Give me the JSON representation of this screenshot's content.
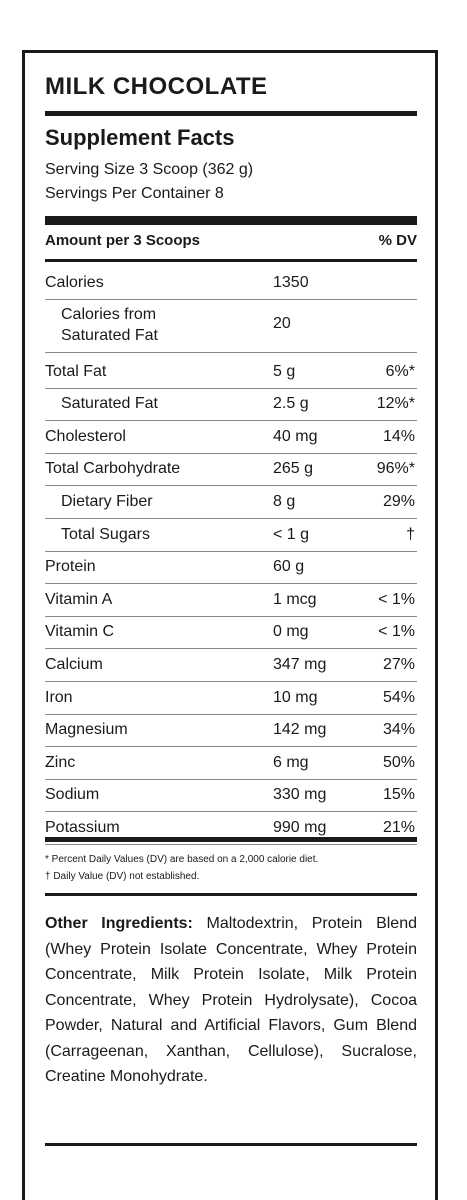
{
  "product_name": "MILK CHOCOLATE",
  "title": "Supplement Facts",
  "serving_size": "Serving Size 3 Scoop (362 g)",
  "servings_per_container": "Servings Per Container 8",
  "header": {
    "amount_label": "Amount per 3 Scoops",
    "dv_label": "% DV"
  },
  "nutrients": [
    {
      "name": "Calories",
      "amount": "1350",
      "dv": ""
    },
    {
      "name": "Calories from Saturated Fat",
      "amount": "20",
      "dv": ""
    },
    {
      "name": "Total Fat",
      "amount": "5 g",
      "dv": "6%*"
    },
    {
      "name": "Saturated Fat",
      "amount": "2.5 g",
      "dv": "12%*"
    },
    {
      "name": "Cholesterol",
      "amount": "40 mg",
      "dv": "14%"
    },
    {
      "name": "Total Carbohydrate",
      "amount": "265 g",
      "dv": "96%*"
    },
    {
      "name": "Dietary Fiber",
      "amount": "8 g",
      "dv": "29%"
    },
    {
      "name": "Total Sugars",
      "amount": "< 1 g",
      "dv": "†"
    },
    {
      "name": "Protein",
      "amount": "60 g",
      "dv": ""
    },
    {
      "name": "Vitamin A",
      "amount": "1 mcg",
      "dv": "< 1%"
    },
    {
      "name": "Vitamin C",
      "amount": "0 mg",
      "dv": "< 1%"
    },
    {
      "name": "Calcium",
      "amount": "347 mg",
      "dv": "27%"
    },
    {
      "name": "Iron",
      "amount": "10 mg",
      "dv": "54%"
    },
    {
      "name": "Magnesium",
      "amount": "142 mg",
      "dv": "34%"
    },
    {
      "name": "Zinc",
      "amount": "6 mg",
      "dv": "50%"
    },
    {
      "name": "Sodium",
      "amount": "330 mg",
      "dv": "15%"
    },
    {
      "name": "Potassium",
      "amount": "990 mg",
      "dv": "21%"
    }
  ],
  "footnotes": [
    "* Percent Daily Values (DV) are based on a 2,000 calorie diet.",
    "† Daily Value (DV) not established."
  ],
  "other_ingredients": {
    "label": "Other Ingredients:",
    "text": "Maltodextrin, Protein Blend (Whey Protein Isolate Concentrate, Whey Protein Concentrate, Milk Protein Isolate, Milk Protein Concentrate, Whey Protein Hydrolysate), Cocoa Powder, Natural and Artificial Flavors, Gum Blend (Carrageenan, Xanthan, Cellulose), Sucralose, Creatine Monohydrate."
  }
}
